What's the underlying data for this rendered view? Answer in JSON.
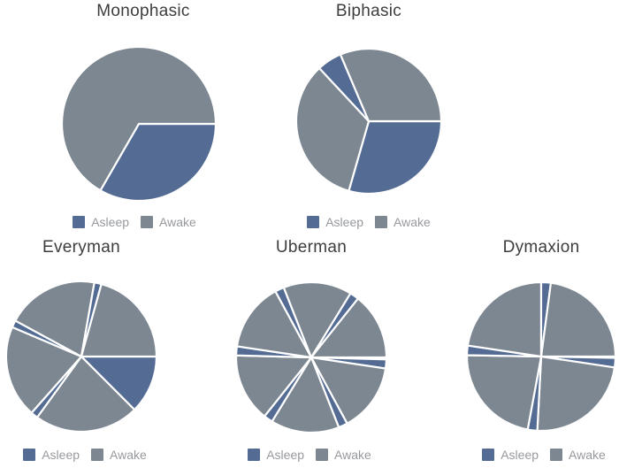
{
  "page": {
    "background": "#ffffff"
  },
  "chart_data": {
    "type": "pie",
    "layout": {
      "grid": "2 rows: Monophasic + Biphasic on top, Everyman + Uberman + Dymaxion below",
      "legend_position": "below each pie",
      "full_circle_represents_hours": 24,
      "slice_border_color": "#ffffff"
    },
    "colors": {
      "asleep": "#546c94",
      "awake": "#7d8791"
    },
    "charts": [
      {
        "title": "Monophasic",
        "legend": {
          "asleep": "Asleep",
          "awake": "Awake"
        },
        "slices": [
          {
            "state": "asleep",
            "start_deg": 0,
            "end_deg": 120,
            "hours": 8
          },
          {
            "state": "awake",
            "start_deg": 120,
            "end_deg": 360,
            "hours": 16
          }
        ]
      },
      {
        "title": "Biphasic",
        "legend": {
          "asleep": "Asleep",
          "awake": "Awake"
        },
        "slices": [
          {
            "state": "asleep",
            "start_deg": 0,
            "end_deg": 106,
            "hours": 7.1
          },
          {
            "state": "awake",
            "start_deg": 106,
            "end_deg": 227,
            "hours": 8.1
          },
          {
            "state": "asleep",
            "start_deg": 227,
            "end_deg": 247,
            "hours": 1.3
          },
          {
            "state": "awake",
            "start_deg": 247,
            "end_deg": 360,
            "hours": 7.5
          }
        ]
      },
      {
        "title": "Everyman",
        "legend": {
          "asleep": "Asleep",
          "awake": "Awake"
        },
        "slices": [
          {
            "state": "asleep",
            "start_deg": 0,
            "end_deg": 45,
            "hours": 3
          },
          {
            "state": "awake",
            "start_deg": 45,
            "end_deg": 126,
            "hours": 5.4
          },
          {
            "state": "asleep",
            "start_deg": 126,
            "end_deg": 131.5,
            "hours": 0.4
          },
          {
            "state": "awake",
            "start_deg": 131.5,
            "end_deg": 203,
            "hours": 4.8
          },
          {
            "state": "asleep",
            "start_deg": 203,
            "end_deg": 208.5,
            "hours": 0.4
          },
          {
            "state": "awake",
            "start_deg": 208.5,
            "end_deg": 280,
            "hours": 4.8
          },
          {
            "state": "asleep",
            "start_deg": 280,
            "end_deg": 285.5,
            "hours": 0.4
          },
          {
            "state": "awake",
            "start_deg": 285.5,
            "end_deg": 360,
            "hours": 5
          }
        ]
      },
      {
        "title": "Uberman",
        "legend": {
          "asleep": "Asleep",
          "awake": "Awake"
        },
        "slices": [
          {
            "state": "awake",
            "start_deg": 0,
            "end_deg": 1.5,
            "hours": 0.1
          },
          {
            "state": "asleep",
            "start_deg": 1.5,
            "end_deg": 8.5,
            "hours": 0.5
          },
          {
            "state": "awake",
            "start_deg": 8.5,
            "end_deg": 61.5,
            "hours": 3.5
          },
          {
            "state": "asleep",
            "start_deg": 61.5,
            "end_deg": 68.5,
            "hours": 0.5
          },
          {
            "state": "awake",
            "start_deg": 68.5,
            "end_deg": 121.5,
            "hours": 3.5
          },
          {
            "state": "asleep",
            "start_deg": 121.5,
            "end_deg": 128.5,
            "hours": 0.5
          },
          {
            "state": "awake",
            "start_deg": 128.5,
            "end_deg": 181.5,
            "hours": 3.5
          },
          {
            "state": "asleep",
            "start_deg": 181.5,
            "end_deg": 188.5,
            "hours": 0.5
          },
          {
            "state": "awake",
            "start_deg": 188.5,
            "end_deg": 241.5,
            "hours": 3.5
          },
          {
            "state": "asleep",
            "start_deg": 241.5,
            "end_deg": 248.5,
            "hours": 0.5
          },
          {
            "state": "awake",
            "start_deg": 248.5,
            "end_deg": 301.5,
            "hours": 3.5
          },
          {
            "state": "asleep",
            "start_deg": 301.5,
            "end_deg": 308.5,
            "hours": 0.5
          },
          {
            "state": "awake",
            "start_deg": 308.5,
            "end_deg": 360,
            "hours": 3.4
          }
        ]
      },
      {
        "title": "Dymaxion",
        "legend": {
          "asleep": "Asleep",
          "awake": "Awake"
        },
        "slices": [
          {
            "state": "awake",
            "start_deg": 0,
            "end_deg": 1,
            "hours": 0.1
          },
          {
            "state": "asleep",
            "start_deg": 1,
            "end_deg": 8.5,
            "hours": 0.5
          },
          {
            "state": "awake",
            "start_deg": 8.5,
            "end_deg": 93,
            "hours": 5.6
          },
          {
            "state": "asleep",
            "start_deg": 93,
            "end_deg": 100.5,
            "hours": 0.5
          },
          {
            "state": "awake",
            "start_deg": 100.5,
            "end_deg": 181,
            "hours": 5.4
          },
          {
            "state": "asleep",
            "start_deg": 181,
            "end_deg": 188.5,
            "hours": 0.5
          },
          {
            "state": "awake",
            "start_deg": 188.5,
            "end_deg": 270,
            "hours": 5.4
          },
          {
            "state": "asleep",
            "start_deg": 270,
            "end_deg": 277.5,
            "hours": 0.5
          },
          {
            "state": "awake",
            "start_deg": 277.5,
            "end_deg": 360,
            "hours": 5.5
          }
        ]
      }
    ]
  }
}
